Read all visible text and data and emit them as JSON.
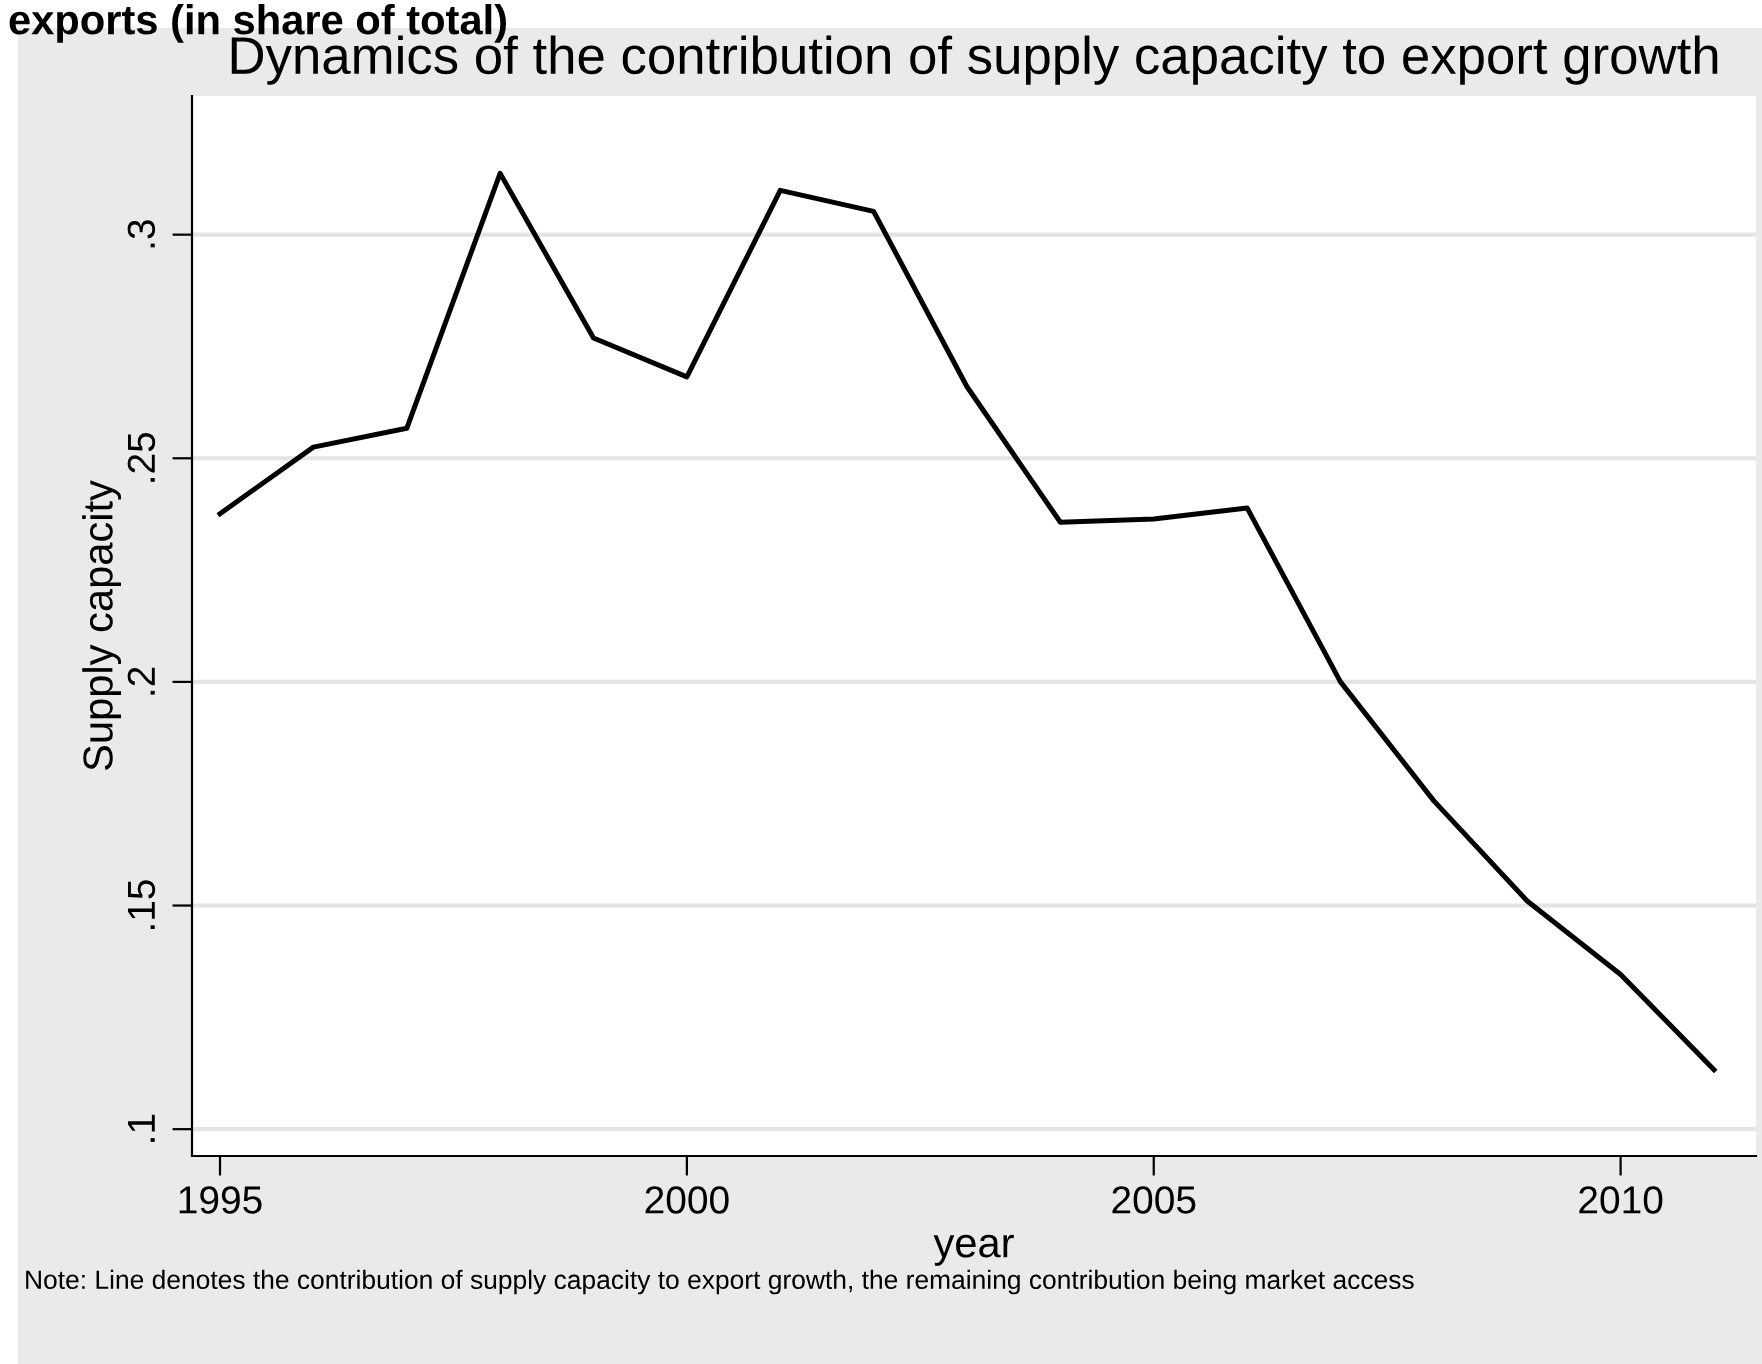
{
  "chart_data": {
    "type": "line",
    "title": "Dynamics of the contribution of supply capacity to export growth",
    "xlabel": "year",
    "ylabel": "Supply capacity",
    "x": [
      1995,
      1996,
      1997,
      1998,
      1999,
      2000,
      2001,
      2002,
      2003,
      2004,
      2005,
      2006,
      2007,
      2008,
      2009,
      2010,
      2011
    ],
    "series": [
      {
        "color": "#000000",
        "values": [
          0.2376,
          0.2525,
          0.2567,
          0.3137,
          0.2769,
          0.2682,
          0.3099,
          0.3052,
          0.266,
          0.2357,
          0.2364,
          0.2389,
          0.2,
          0.1734,
          0.151,
          0.1346,
          0.1133
        ]
      }
    ],
    "xlim": [
      1994.7,
      2011.45
    ],
    "xticks": [
      1995,
      2000,
      2005,
      2010
    ],
    "ylim": [
      0.094,
      0.331
    ],
    "yticks": [
      {
        "value": 0.1,
        "label": ".1"
      },
      {
        "value": 0.15,
        "label": ".15"
      },
      {
        "value": 0.2,
        "label": ".2"
      },
      {
        "value": 0.25,
        "label": ".25"
      },
      {
        "value": 0.3,
        "label": ".3"
      }
    ],
    "grid": "y",
    "marker": "none",
    "line_style": "solid",
    "legend": false,
    "annotations": [
      "exports (in share of total)",
      "Note: Line denotes the contribution of supply capacity to export growth, the remaining contribution being market access"
    ]
  }
}
